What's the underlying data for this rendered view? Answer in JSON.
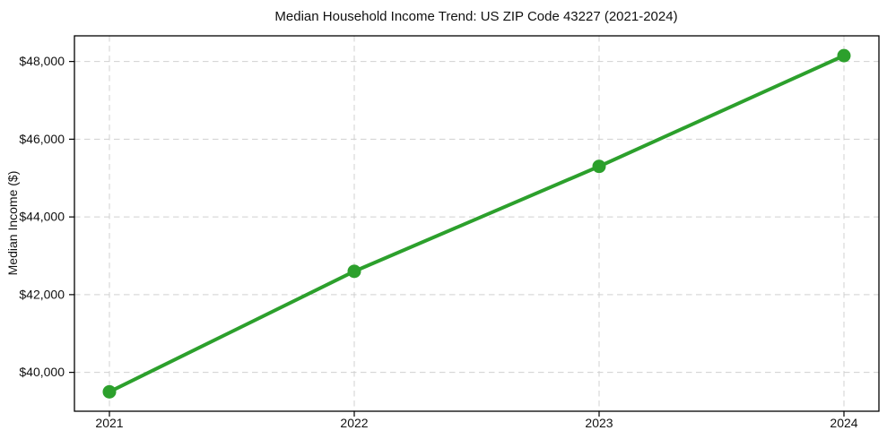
{
  "chart_data": {
    "type": "line",
    "title": "Median Household Income Trend: US ZIP Code 43227 (2021-2024)",
    "xlabel": "",
    "ylabel": "Median Income ($)",
    "x_tick_labels": [
      "2021",
      "2022",
      "2023",
      "2024"
    ],
    "values": [
      39500,
      42600,
      45300,
      48150
    ],
    "y_tick_values": [
      40000,
      42000,
      44000,
      46000,
      48000
    ],
    "y_tick_labels": [
      "$40,000",
      "$42,000",
      "$44,000",
      "$46,000",
      "$48,000"
    ],
    "ylim": [
      39000,
      48660
    ],
    "grid": true,
    "grid_style": "dashed",
    "legend": "none",
    "colors": {
      "line": "#2ca02c",
      "marker": "#2ca02c",
      "grid": "#d0d0d0",
      "spine": "#000000",
      "text": "#111111",
      "background": "#ffffff"
    }
  }
}
